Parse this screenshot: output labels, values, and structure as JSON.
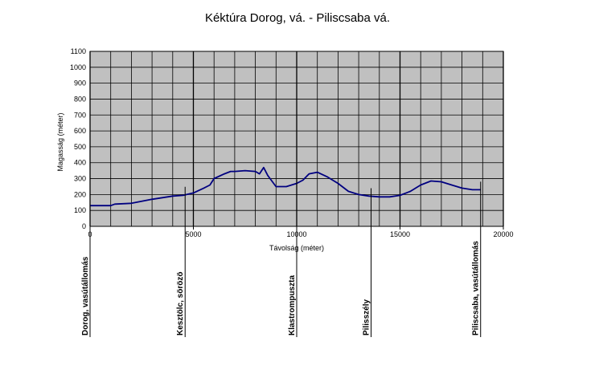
{
  "chart_data": {
    "type": "line",
    "title": "Kéktúra  Dorog, vá. - Piliscsaba vá.",
    "xlabel": "Távolság (méter)",
    "ylabel": "Magasság (méter)",
    "xlim": [
      0,
      20000
    ],
    "ylim": [
      0,
      1100
    ],
    "x_ticks": [
      0,
      5000,
      10000,
      15000,
      20000
    ],
    "x_tick_labels": [
      "0",
      "5000",
      "10000",
      "15000",
      "20000"
    ],
    "y_ticks": [
      0,
      100,
      200,
      300,
      400,
      500,
      600,
      700,
      800,
      900,
      1000,
      1100
    ],
    "y_tick_labels": [
      "0",
      "100",
      "200",
      "300",
      "400",
      "500",
      "600",
      "700",
      "800",
      "900",
      "1000",
      "1100"
    ],
    "grid": true,
    "plot_background": "#c0c0c0",
    "line_color": "#000080",
    "series": [
      {
        "x": [
          0,
          1000,
          1200,
          2000,
          2600,
          3000,
          3500,
          4000,
          4500,
          5000,
          5500,
          5800,
          6000,
          6500,
          6800,
          7000,
          7500,
          8000,
          8200,
          8400,
          8600,
          9000,
          9500,
          10000,
          10300,
          10600,
          11000,
          11500,
          12000,
          12500,
          13000,
          13500,
          14000,
          14500,
          15000,
          15500,
          16000,
          16500,
          17000,
          17500,
          18000,
          18500,
          18900
        ],
        "y": [
          130,
          130,
          140,
          145,
          160,
          170,
          180,
          190,
          195,
          210,
          240,
          260,
          300,
          330,
          345,
          345,
          350,
          345,
          330,
          370,
          320,
          250,
          250,
          270,
          290,
          330,
          340,
          310,
          270,
          220,
          200,
          190,
          185,
          185,
          195,
          220,
          260,
          285,
          280,
          260,
          240,
          230,
          230
        ]
      }
    ],
    "landmarks": [
      {
        "label": "Dorog, vasútállomás",
        "x": 0
      },
      {
        "label": "Kesztölc, sörözö",
        "x": 4600
      },
      {
        "label": "Klastrompuszta",
        "x": 10000
      },
      {
        "label": "Pilisszély",
        "x": 13600
      },
      {
        "label": "Piliscsaba, vasútállomás",
        "x": 18900
      }
    ]
  }
}
